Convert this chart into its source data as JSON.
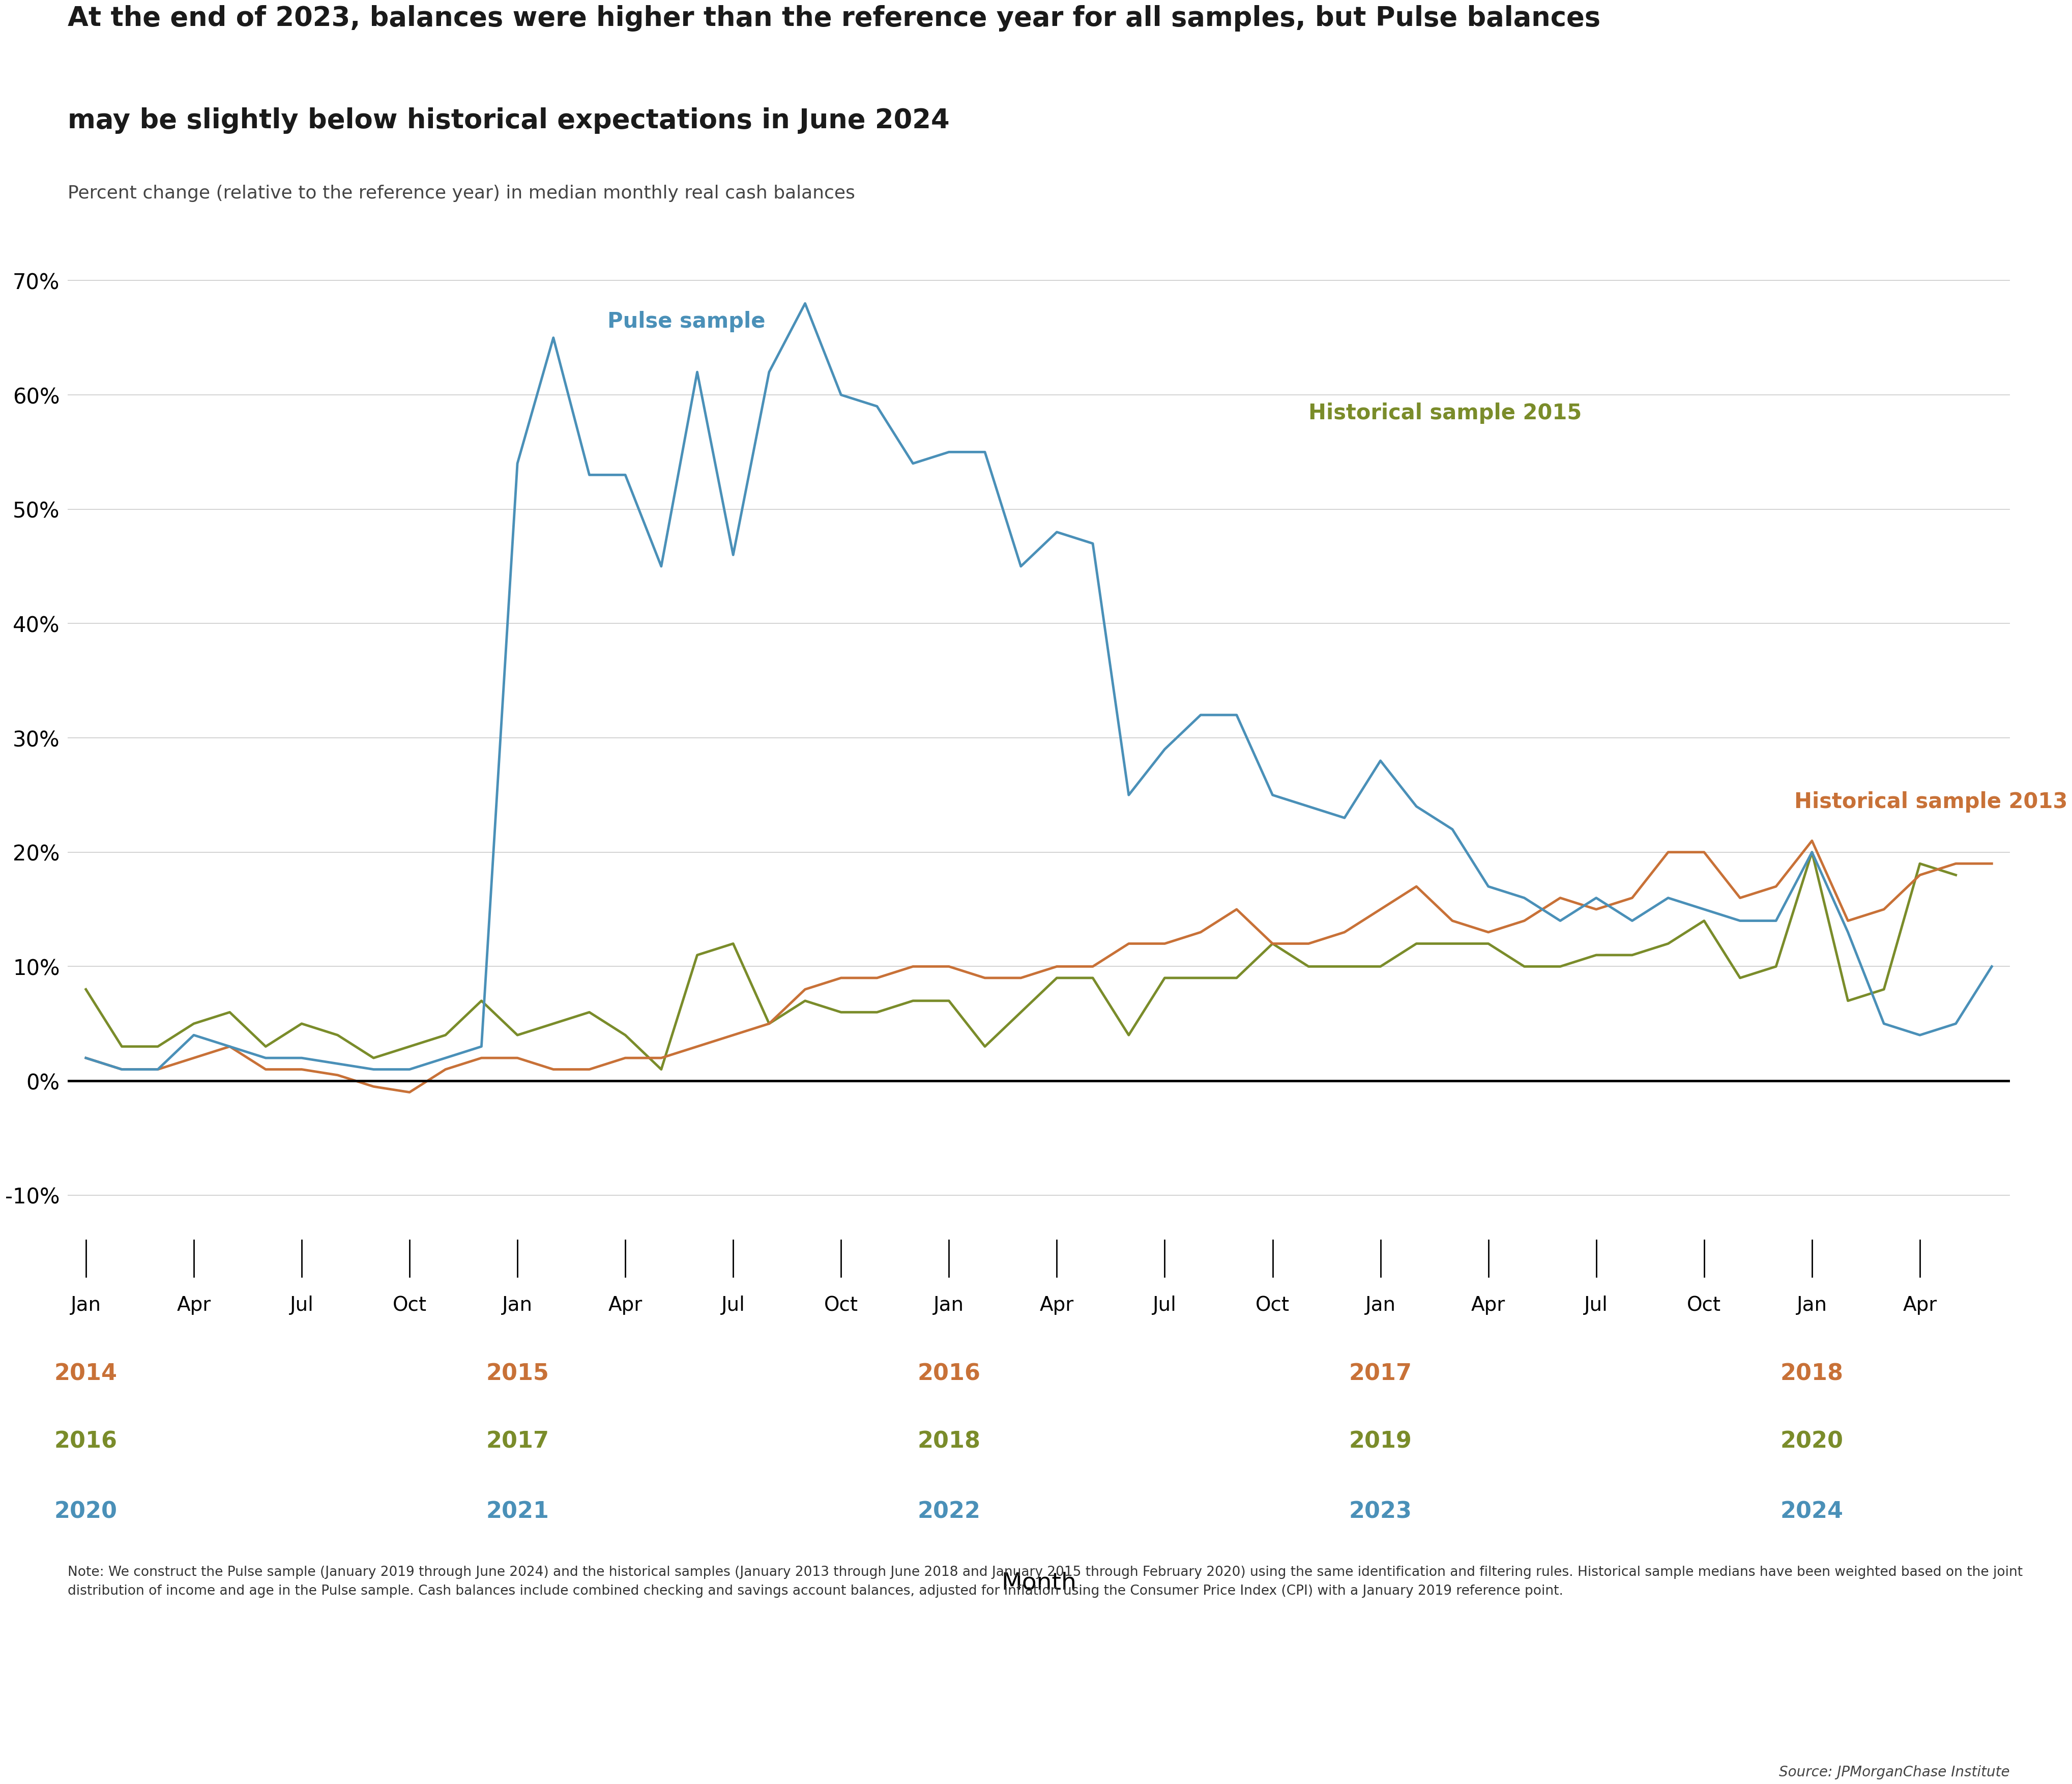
{
  "title_line1": "At the end of 2023, balances were higher than the reference year for all samples, but Pulse balances",
  "title_line2": "may be slightly below historical expectations in June 2024",
  "subtitle": "Percent change (relative to the reference year) in median monthly real cash balances",
  "xlabel": "Month",
  "note": "Note: We construct the Pulse sample (January 2019 through June 2024) and the historical samples (January 2013 through June 2018 and January 2015 through February 2020) using the same identification and filtering rules. Historical sample medians have been weighted based on the joint distribution of income and age in the Pulse sample. Cash balances include combined checking and savings account balances, adjusted for inflation using the Consumer Price Index (CPI) with a January 2019 reference point.",
  "source": "Source: JPMorganChase Institute",
  "background_color": "#ffffff",
  "pulse_color": "#4a90b8",
  "hist2013_color": "#c87137",
  "hist2015_color": "#7a8c2a",
  "ylim": [
    -0.115,
    0.73
  ],
  "yticks": [
    -0.1,
    0.0,
    0.1,
    0.2,
    0.3,
    0.4,
    0.5,
    0.6,
    0.7
  ],
  "pulse_label": "Pulse sample",
  "hist2013_label": "Historical sample 2013",
  "hist2015_label": "Historical sample 2015",
  "pulse_data_x": [
    0,
    1,
    2,
    3,
    4,
    5,
    6,
    7,
    8,
    9,
    10,
    11,
    12,
    13,
    14,
    15,
    16,
    17,
    18,
    19,
    20,
    21,
    22,
    23,
    24,
    25,
    26,
    27,
    28,
    29,
    30,
    31,
    32,
    33,
    34,
    35,
    36,
    37,
    38,
    39,
    40,
    41,
    42,
    43,
    44,
    45,
    46,
    47,
    48,
    49,
    50,
    51,
    52,
    53
  ],
  "pulse_data_y": [
    0.02,
    0.01,
    0.01,
    0.04,
    0.03,
    0.02,
    0.02,
    0.015,
    0.01,
    0.01,
    0.02,
    0.03,
    0.54,
    0.65,
    0.53,
    0.53,
    0.45,
    0.62,
    0.46,
    0.62,
    0.68,
    0.6,
    0.59,
    0.54,
    0.55,
    0.55,
    0.45,
    0.48,
    0.47,
    0.25,
    0.29,
    0.32,
    0.32,
    0.25,
    0.24,
    0.23,
    0.28,
    0.24,
    0.22,
    0.17,
    0.16,
    0.14,
    0.16,
    0.14,
    0.16,
    0.15,
    0.14,
    0.14,
    0.2,
    0.13,
    0.05,
    0.04,
    0.05,
    0.1
  ],
  "hist2013_data_x": [
    0,
    1,
    2,
    3,
    4,
    5,
    6,
    7,
    8,
    9,
    10,
    11,
    12,
    13,
    14,
    15,
    16,
    17,
    18,
    19,
    20,
    21,
    22,
    23,
    24,
    25,
    26,
    27,
    28,
    29,
    30,
    31,
    32,
    33,
    34,
    35,
    36,
    37,
    38,
    39,
    40,
    41,
    42,
    43,
    44,
    45,
    46,
    47,
    48,
    49,
    50,
    51,
    52,
    53
  ],
  "hist2013_data_y": [
    0.02,
    0.01,
    0.01,
    0.02,
    0.03,
    0.01,
    0.01,
    0.005,
    -0.005,
    -0.01,
    0.01,
    0.02,
    0.02,
    0.01,
    0.01,
    0.02,
    0.02,
    0.03,
    0.04,
    0.05,
    0.08,
    0.09,
    0.09,
    0.1,
    0.1,
    0.09,
    0.09,
    0.1,
    0.1,
    0.12,
    0.12,
    0.13,
    0.15,
    0.12,
    0.12,
    0.13,
    0.15,
    0.17,
    0.14,
    0.13,
    0.14,
    0.16,
    0.15,
    0.16,
    0.2,
    0.2,
    0.16,
    0.17,
    0.21,
    0.14,
    0.15,
    0.18,
    0.19,
    0.19
  ],
  "hist2015_data_x": [
    0,
    1,
    2,
    3,
    4,
    5,
    6,
    7,
    8,
    9,
    10,
    11,
    12,
    13,
    14,
    15,
    16,
    17,
    18,
    19,
    20,
    21,
    22,
    23,
    24,
    25,
    26,
    27,
    28,
    29,
    30,
    31,
    32,
    33,
    34,
    35,
    36,
    37,
    38,
    39,
    40,
    41,
    42,
    43,
    44,
    45,
    46,
    47,
    48,
    49,
    50,
    51,
    52
  ],
  "hist2015_data_y": [
    0.08,
    0.03,
    0.03,
    0.05,
    0.06,
    0.03,
    0.05,
    0.04,
    0.02,
    0.03,
    0.04,
    0.07,
    0.04,
    0.05,
    0.06,
    0.04,
    0.01,
    0.11,
    0.12,
    0.05,
    0.07,
    0.06,
    0.06,
    0.07,
    0.07,
    0.03,
    0.06,
    0.09,
    0.09,
    0.04,
    0.09,
    0.09,
    0.09,
    0.12,
    0.1,
    0.1,
    0.1,
    0.12,
    0.12,
    0.12,
    0.1,
    0.1,
    0.11,
    0.11,
    0.12,
    0.14,
    0.09,
    0.1,
    0.2,
    0.07,
    0.08,
    0.19,
    0.18
  ],
  "tick_x_positions": [
    0,
    3,
    6,
    9,
    12,
    15,
    18,
    21,
    24,
    27,
    30,
    33,
    36,
    39,
    42,
    45,
    48,
    51
  ],
  "tick_month_labels": [
    "Jan",
    "Apr",
    "Jul",
    "Oct",
    "Jan",
    "Apr",
    "Jul",
    "Oct",
    "Jan",
    "Apr",
    "Jul",
    "Oct",
    "Jan",
    "Apr",
    "Jul",
    "Oct",
    "Jan",
    "Apr"
  ],
  "jan_tick_indices": [
    0,
    4,
    8,
    12,
    16
  ],
  "jan_years": [
    [
      [
        "2014",
        "#c87137"
      ],
      [
        "2016",
        "#7a8c2a"
      ],
      [
        "2020",
        "#4a90b8"
      ]
    ],
    [
      [
        "2015",
        "#c87137"
      ],
      [
        "2017",
        "#7a8c2a"
      ],
      [
        "2021",
        "#4a90b8"
      ]
    ],
    [
      [
        "2016",
        "#c87137"
      ],
      [
        "2018",
        "#7a8c2a"
      ],
      [
        "2022",
        "#4a90b8"
      ]
    ],
    [
      [
        "2017",
        "#c87137"
      ],
      [
        "2019",
        "#7a8c2a"
      ],
      [
        "2023",
        "#4a90b8"
      ]
    ],
    [
      [
        "2018",
        "#c87137"
      ],
      [
        "2020",
        "#7a8c2a"
      ],
      [
        "2024",
        "#4a90b8"
      ]
    ]
  ]
}
